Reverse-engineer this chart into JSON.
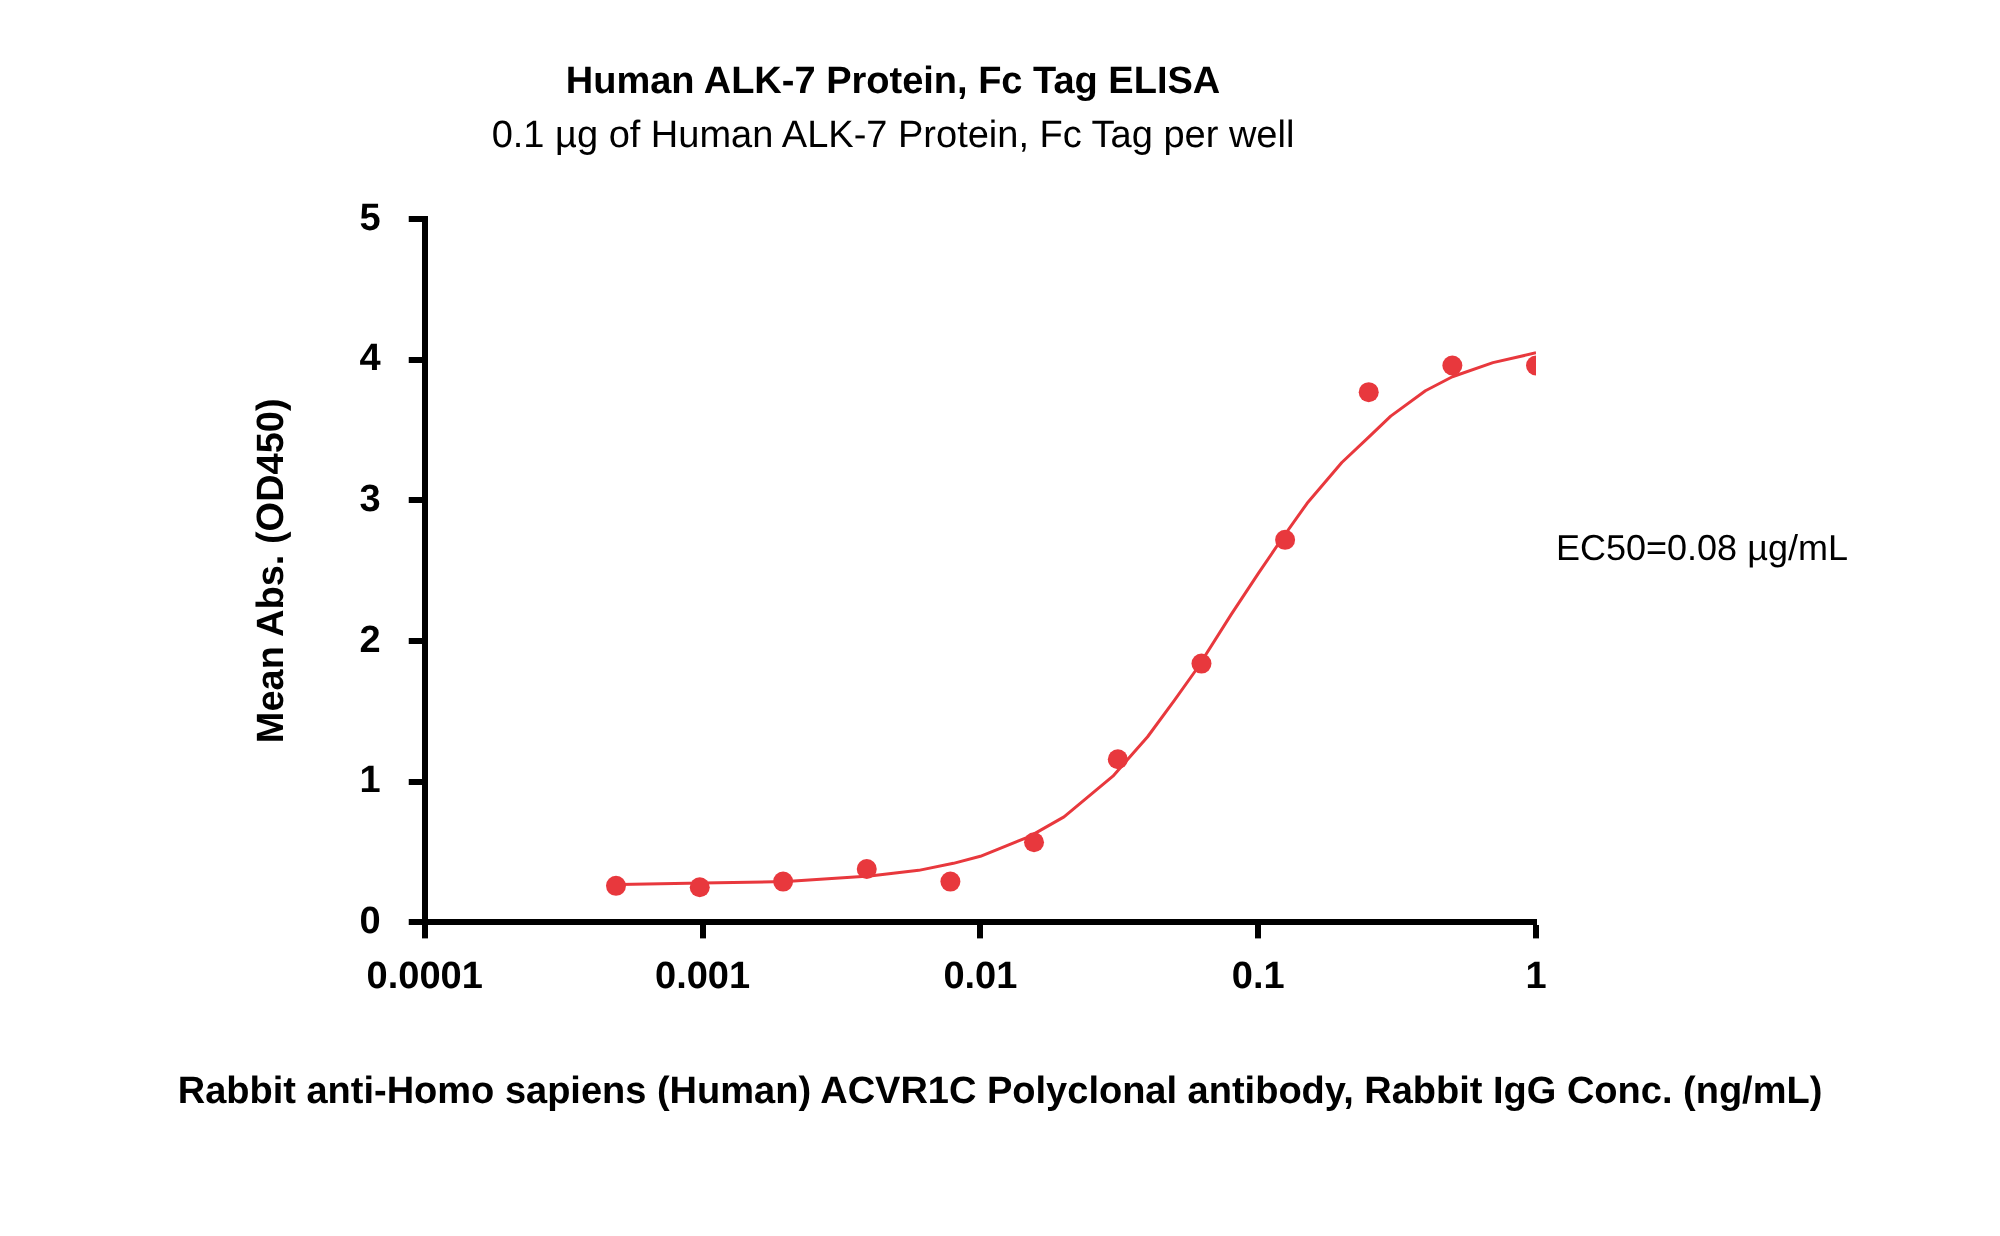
{
  "chart_data": {
    "type": "scatter",
    "title": "Human ALK-7 Protein, Fc Tag ELISA",
    "subtitle": "0.1 µg of Human ALK-7 Protein, Fc Tag per well",
    "xlabel": "Rabbit anti-Homo sapiens (Human) ACVR1C Polyclonal antibody, Rabbit IgG Conc. (ng/mL)",
    "ylabel": "Mean Abs. (OD450)",
    "log": "x",
    "xlim": [
      0.0001,
      1
    ],
    "xticks": [
      0.0001,
      0.001,
      0.01,
      0.1,
      1
    ],
    "ylim": [
      0,
      5
    ],
    "yticks": [
      0,
      1,
      2,
      3,
      4,
      5
    ],
    "grid": false,
    "legend": false,
    "marker": "circle",
    "annotations": [
      "EC50=0.08 µg/mL"
    ],
    "series": [
      {
        "color": "#e8383d",
        "x": [
          0.000488,
          0.000977,
          0.00195,
          0.0039,
          0.0078,
          0.0156,
          0.03125,
          0.0625,
          0.125,
          0.25,
          0.5,
          1
        ],
        "values": [
          0.26,
          0.25,
          0.29,
          0.38,
          0.29,
          0.57,
          1.16,
          1.84,
          2.72,
          3.77,
          3.96,
          3.96
        ]
      },
      {
        "type": "line",
        "color": "#e8383d",
        "marker": "none",
        "x": [
          0.0005,
          0.001,
          0.002,
          0.004,
          0.006,
          0.008,
          0.01,
          0.015,
          0.02,
          0.03,
          0.04,
          0.05,
          0.06,
          0.08,
          0.1,
          0.12,
          0.15,
          0.2,
          0.25,
          0.3,
          0.4,
          0.5,
          0.7,
          1
        ],
        "values": [
          0.27,
          0.28,
          0.29,
          0.33,
          0.37,
          0.42,
          0.47,
          0.61,
          0.75,
          1.04,
          1.32,
          1.58,
          1.8,
          2.19,
          2.48,
          2.71,
          2.98,
          3.27,
          3.45,
          3.6,
          3.78,
          3.88,
          3.98,
          4.05
        ]
      }
    ]
  }
}
